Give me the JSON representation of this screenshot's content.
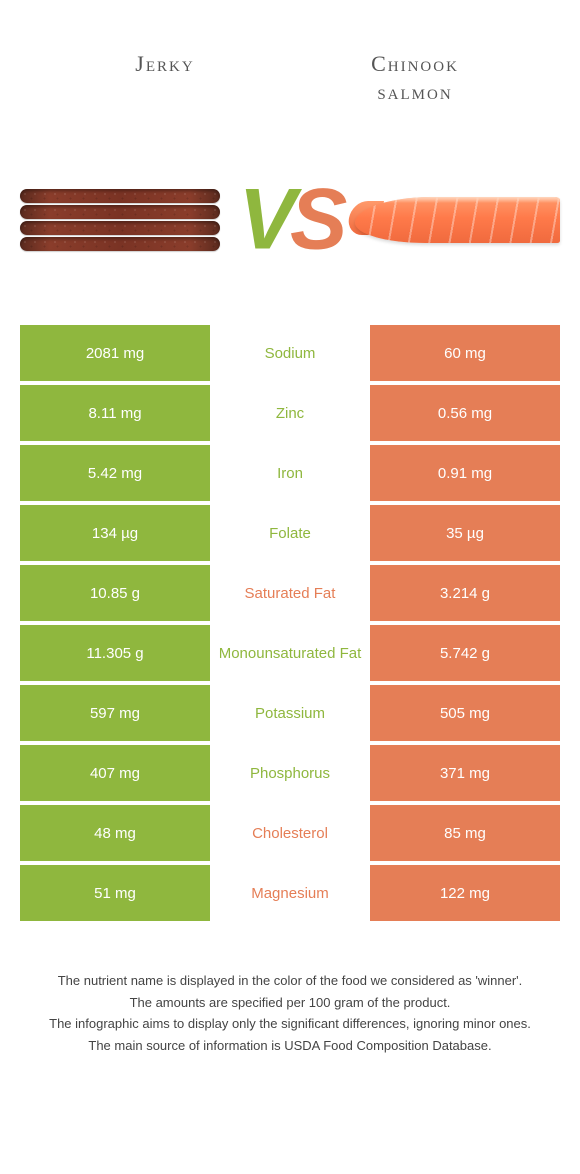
{
  "header": {
    "left_title": "Jerky",
    "right_title_line1": "Chinook",
    "right_title_line2": "salmon",
    "vs_v": "V",
    "vs_s": "S"
  },
  "palette": {
    "left_color": "#8fb73e",
    "right_color": "#e57e56",
    "bg": "#ffffff"
  },
  "comparison": {
    "type": "table",
    "columns": [
      "jerky_value",
      "nutrient",
      "salmon_value",
      "winner"
    ],
    "rows": [
      {
        "jerky_value": "2081 mg",
        "nutrient": "Sodium",
        "salmon_value": "60 mg",
        "winner": "left"
      },
      {
        "jerky_value": "8.11 mg",
        "nutrient": "Zinc",
        "salmon_value": "0.56 mg",
        "winner": "left"
      },
      {
        "jerky_value": "5.42 mg",
        "nutrient": "Iron",
        "salmon_value": "0.91 mg",
        "winner": "left"
      },
      {
        "jerky_value": "134 µg",
        "nutrient": "Folate",
        "salmon_value": "35 µg",
        "winner": "left"
      },
      {
        "jerky_value": "10.85 g",
        "nutrient": "Saturated Fat",
        "salmon_value": "3.214 g",
        "winner": "right"
      },
      {
        "jerky_value": "11.305 g",
        "nutrient": "Monounsaturated Fat",
        "salmon_value": "5.742 g",
        "winner": "left"
      },
      {
        "jerky_value": "597 mg",
        "nutrient": "Potassium",
        "salmon_value": "505 mg",
        "winner": "left"
      },
      {
        "jerky_value": "407 mg",
        "nutrient": "Phosphorus",
        "salmon_value": "371 mg",
        "winner": "left"
      },
      {
        "jerky_value": "48 mg",
        "nutrient": "Cholesterol",
        "salmon_value": "85 mg",
        "winner": "right"
      },
      {
        "jerky_value": "51 mg",
        "nutrient": "Magnesium",
        "salmon_value": "122 mg",
        "winner": "right"
      }
    ]
  },
  "notes": {
    "line1": "The nutrient name is displayed in the color of the food we considered as 'winner'.",
    "line2": "The amounts are specified per 100 gram of the product.",
    "line3": "The infographic aims to display only the significant differences, ignoring minor ones.",
    "line4": "The main source of information is USDA Food Composition Database."
  }
}
